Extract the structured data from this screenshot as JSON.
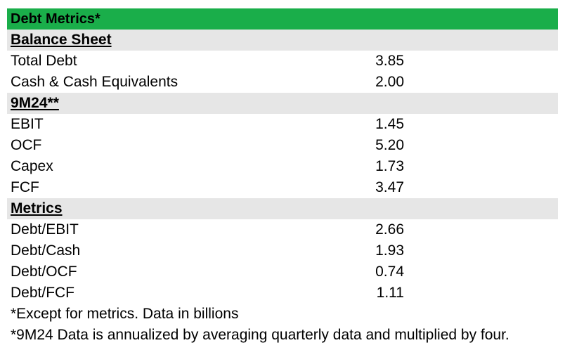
{
  "title": "Debt Metrics*",
  "sections": [
    {
      "heading": "Balance Sheet",
      "rows": [
        {
          "label": "Total Debt",
          "value": "3.85"
        },
        {
          "label": "Cash & Cash Equivalents",
          "value": "2.00"
        }
      ]
    },
    {
      "heading": "9M24**",
      "rows": [
        {
          "label": "EBIT",
          "value": "1.45"
        },
        {
          "label": "OCF",
          "value": "5.20"
        },
        {
          "label": "Capex",
          "value": "1.73"
        },
        {
          "label": "FCF",
          "value": "3.47"
        }
      ]
    },
    {
      "heading": "Metrics",
      "rows": [
        {
          "label": "Debt/EBIT",
          "value": "2.66"
        },
        {
          "label": "Debt/Cash",
          "value": "1.93"
        },
        {
          "label": "Debt/OCF",
          "value": "0.74"
        },
        {
          "label": "Debt/FCF",
          "value": "1.11"
        }
      ]
    }
  ],
  "notes": [
    "*Except for metrics. Data in billions",
    "*9M24 Data is annualized by averaging quarterly data and multiplied by four."
  ],
  "colors": {
    "title_bg": "#1aae4a",
    "section_bg": "#e6e6e6"
  }
}
